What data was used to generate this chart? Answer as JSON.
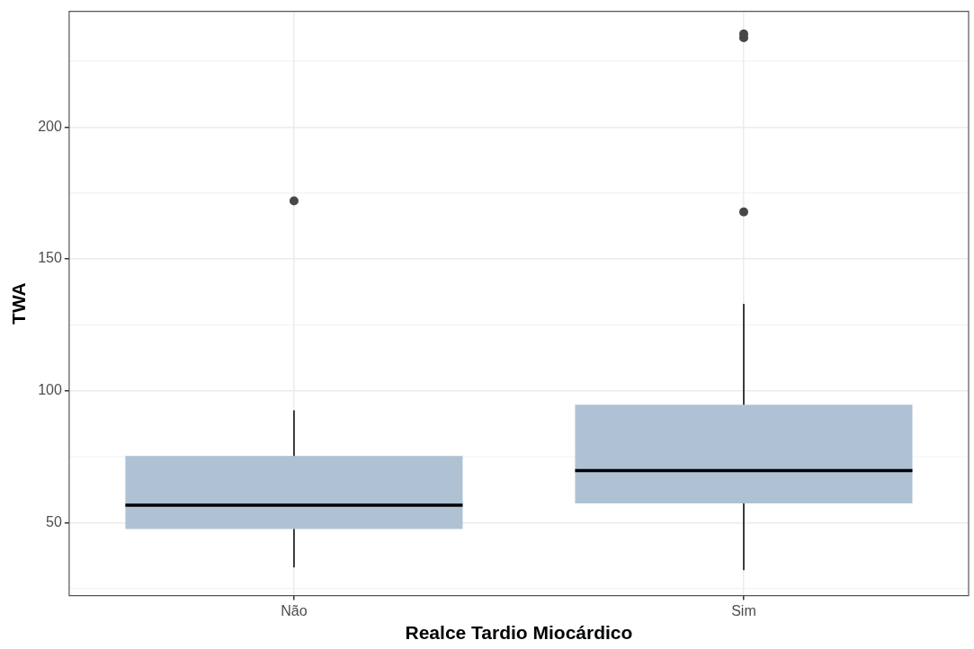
{
  "chart_data": {
    "type": "box",
    "xlabel": "Realce Tardio Miocárdico",
    "ylabel": "TWA",
    "categories": [
      "Não",
      "Sim"
    ],
    "color": "#aec2d4",
    "boxes": [
      {
        "low": 33,
        "q1": 47.6,
        "median": 56.6,
        "q3": 75.3,
        "high": 92.6,
        "outliers": [
          172
        ]
      },
      {
        "low": 32,
        "q1": 57.3,
        "median": 69.7,
        "q3": 94.7,
        "high": 133,
        "outliers": [
          167.8,
          233.9,
          235.3
        ]
      }
    ],
    "ylim": [
      22.3,
      243.9
    ],
    "yticks": [
      50,
      100,
      150,
      200
    ],
    "grid": true,
    "legend": false
  }
}
